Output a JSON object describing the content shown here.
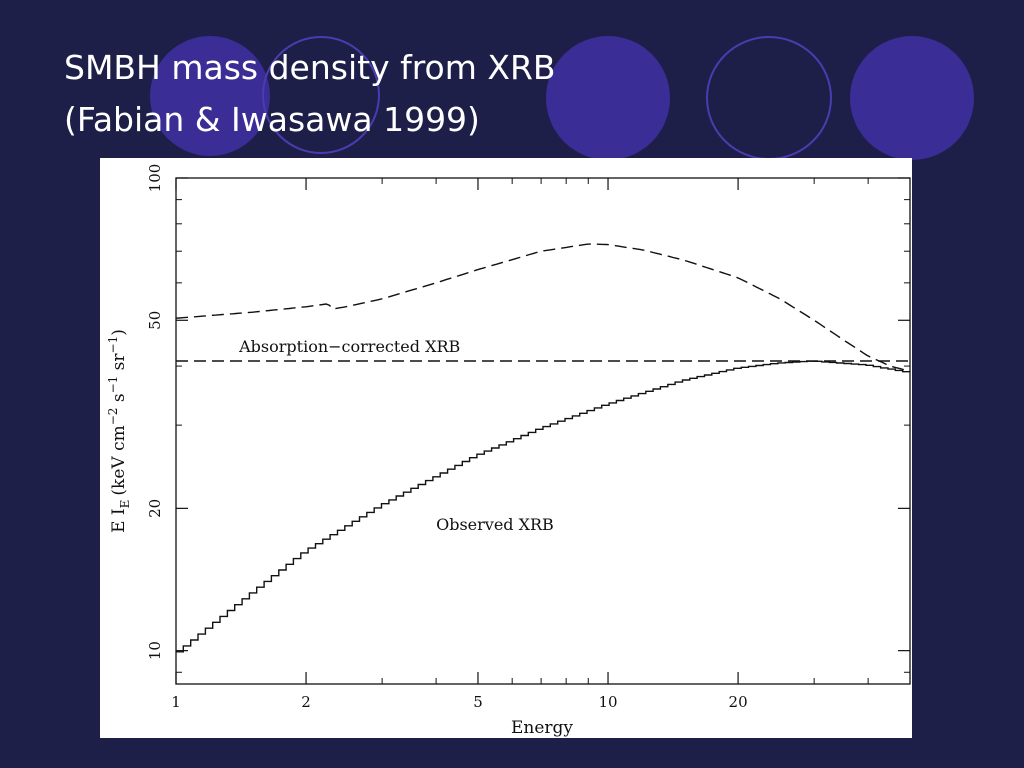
{
  "slide": {
    "title_line1": "SMBH mass density from XRB",
    "title_line2": "(Fabian & Iwasawa 1999)",
    "colors": {
      "background": "#1d1f49",
      "decor_fill": "#3a2d95",
      "decor_stroke": "#4a3cb0",
      "title": "#ffffff"
    }
  },
  "chart_data": {
    "type": "line",
    "xlabel": "Energy",
    "ylabel": "E I",
    "ylabel_sub": "E",
    "ylabel_units": "(keV cm",
    "ylabel_sup1": "−2",
    "ylabel_s": " s",
    "ylabel_sup2": "−1",
    "ylabel_sr": " sr",
    "ylabel_sup3": "−1",
    "ylabel_close": ")",
    "x_scale": "log",
    "y_scale": "log",
    "xlim": [
      1,
      50
    ],
    "ylim": [
      8.5,
      100
    ],
    "x_ticks": [
      1,
      2,
      5,
      10,
      20
    ],
    "x_tick_labels": [
      "1",
      "2",
      "5",
      "10",
      "20"
    ],
    "y_ticks": [
      10,
      20,
      50,
      100
    ],
    "y_tick_labels": [
      "10",
      "20",
      "50",
      "100"
    ],
    "series": [
      {
        "name": "Observed XRB",
        "style": "histogram",
        "x": [
          1,
          1.5,
          2,
          3,
          4,
          5,
          7,
          10,
          15,
          20,
          25,
          30,
          40,
          50
        ],
        "y": [
          9.8,
          13.2,
          16.2,
          20.3,
          23.3,
          25.9,
          29.5,
          33.2,
          37.3,
          39.6,
          40.6,
          41.0,
          40.2,
          38.8
        ]
      },
      {
        "name": "",
        "style": "dashed",
        "x": [
          1,
          1.5,
          2,
          2.25,
          2.3,
          2.5,
          3,
          4,
          5,
          7,
          9,
          10,
          12,
          15,
          20,
          25,
          30,
          35,
          40,
          45,
          50
        ],
        "y": [
          50.5,
          52.0,
          53.4,
          54.2,
          52.8,
          53.5,
          55.5,
          60.0,
          64.0,
          70.0,
          72.5,
          72.3,
          70.5,
          67.0,
          61.5,
          55.5,
          50.0,
          45.5,
          42.0,
          40.0,
          39.0
        ]
      },
      {
        "name": "Absorption−corrected XRB",
        "style": "dashed",
        "x": [
          1,
          50
        ],
        "y": [
          41.0,
          41.0
        ]
      }
    ],
    "annotations": [
      {
        "text": "Absorption−corrected XRB",
        "x": 1.4,
        "y": 42.8
      },
      {
        "text": "Observed XRB",
        "x": 4.0,
        "y": 18.0
      }
    ],
    "grid": false,
    "legend": "none"
  }
}
